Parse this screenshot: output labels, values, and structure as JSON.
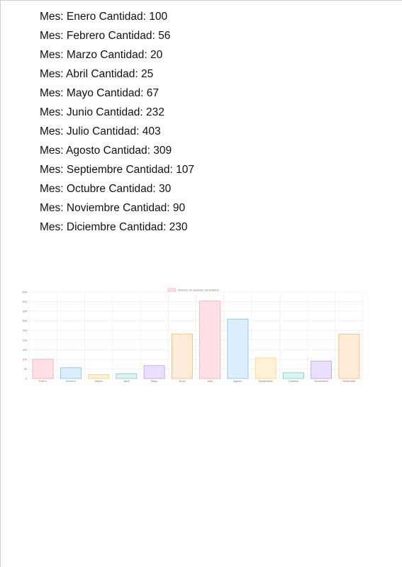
{
  "list": {
    "month_prefix": "Mes:",
    "qty_prefix": "Cantidad:",
    "items": [
      {
        "mes": "Enero",
        "cantidad": "100"
      },
      {
        "mes": "Febrero",
        "cantidad": "56"
      },
      {
        "mes": "Marzo",
        "cantidad": "20"
      },
      {
        "mes": "Abril",
        "cantidad": "25"
      },
      {
        "mes": "Mayo",
        "cantidad": "67"
      },
      {
        "mes": "Junio",
        "cantidad": "232"
      },
      {
        "mes": "Julio",
        "cantidad": "403"
      },
      {
        "mes": "Agosto",
        "cantidad": "309"
      },
      {
        "mes": "Septiembre",
        "cantidad": "107"
      },
      {
        "mes": "Octubre",
        "cantidad": "30"
      },
      {
        "mes": "Noviembre",
        "cantidad": "90"
      },
      {
        "mes": "Diciembre",
        "cantidad": "230"
      }
    ]
  },
  "chart_data": {
    "type": "bar",
    "categories": [
      "Enero",
      "Febrero",
      "Marzo",
      "Abril",
      "Mayo",
      "Junio",
      "Julio",
      "Agosto",
      "Septiembre",
      "Octubre",
      "Noviembre",
      "Diciembre"
    ],
    "series": [
      {
        "name": "Número de usuarios conectados",
        "values": [
          100,
          56,
          20,
          25,
          67,
          232,
          403,
          309,
          107,
          30,
          90,
          230
        ]
      }
    ],
    "ylim": [
      0,
      450
    ],
    "yticks": [
      0,
      50,
      100,
      150,
      200,
      250,
      300,
      350,
      400,
      450
    ],
    "grid": true,
    "legend": "top-center",
    "colors": {
      "fills": [
        "#ffe1e6",
        "#dbeefb",
        "#fff3d6",
        "#dbf4f3",
        "#ebe0ff",
        "#ffebd6",
        "#ffe1e6",
        "#dbeefb",
        "#fff3d6",
        "#dbf4f3",
        "#ebe0ff",
        "#ffebd6"
      ],
      "strokes": [
        "#ff9fb3",
        "#7cc3ee",
        "#ffcf6a",
        "#74cfcf",
        "#b79bff",
        "#ffb26b",
        "#ff9fb3",
        "#7cc3ee",
        "#ffcf6a",
        "#74cfcf",
        "#b79bff",
        "#ffb26b"
      ],
      "grid": "#ececec",
      "axis_text": "#777777"
    }
  }
}
